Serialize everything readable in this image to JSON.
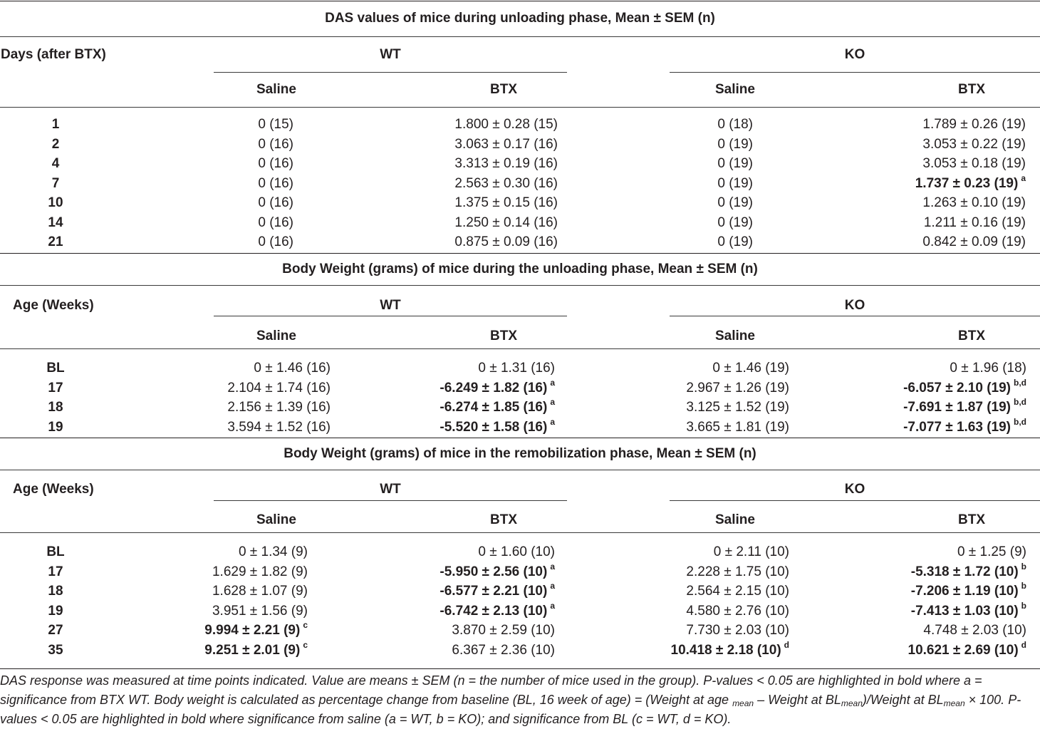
{
  "sections": [
    {
      "title": "DAS values of mice during unloading phase, Mean ± SEM (n)",
      "row_header": "Days (after BTX)",
      "group_wt": "WT",
      "group_ko": "KO",
      "col_saline_wt": "Saline",
      "col_btx_wt": "BTX",
      "col_saline_ko": "Saline",
      "col_btx_ko": "BTX",
      "rows": [
        {
          "label": "1",
          "cells": [
            {
              "text": "0 (15)"
            },
            {
              "text": "1.800 ± 0.28 (15)"
            },
            {
              "text": "0 (18)"
            },
            {
              "text": "1.789 ± 0.26 (19)"
            }
          ]
        },
        {
          "label": "2",
          "cells": [
            {
              "text": "0 (16)"
            },
            {
              "text": "3.063 ± 0.17 (16)"
            },
            {
              "text": "0 (19)"
            },
            {
              "text": "3.053 ± 0.22 (19)"
            }
          ]
        },
        {
          "label": "4",
          "cells": [
            {
              "text": "0 (16)"
            },
            {
              "text": "3.313 ± 0.19 (16)"
            },
            {
              "text": "0 (19)"
            },
            {
              "text": "3.053 ± 0.18 (19)"
            }
          ]
        },
        {
          "label": "7",
          "cells": [
            {
              "text": "0 (16)"
            },
            {
              "text": "2.563 ± 0.30 (16)"
            },
            {
              "text": "0 (19)"
            },
            {
              "text": "1.737 ± 0.23 (19)",
              "sup": "a",
              "bold": true
            }
          ]
        },
        {
          "label": "10",
          "cells": [
            {
              "text": "0 (16)"
            },
            {
              "text": "1.375 ± 0.15 (16)"
            },
            {
              "text": "0 (19)"
            },
            {
              "text": "1.263 ± 0.10 (19)"
            }
          ]
        },
        {
          "label": "14",
          "cells": [
            {
              "text": "0 (16)"
            },
            {
              "text": "1.250 ± 0.14 (16)"
            },
            {
              "text": "0 (19)"
            },
            {
              "text": "1.211 ± 0.16 (19)"
            }
          ]
        },
        {
          "label": "21",
          "cells": [
            {
              "text": "0 (16)"
            },
            {
              "text": "0.875 ± 0.09 (16)"
            },
            {
              "text": "0 (19)"
            },
            {
              "text": "0.842 ± 0.09 (19)"
            }
          ]
        }
      ]
    },
    {
      "title": "Body Weight (grams) of mice during the unloading phase, Mean ± SEM (n)",
      "row_header": "Age (Weeks)",
      "group_wt": "WT",
      "group_ko": "KO",
      "col_saline_wt": "Saline",
      "col_btx_wt": "BTX",
      "col_saline_ko": "Saline",
      "col_btx_ko": "BTX",
      "rows": [
        {
          "label": "BL",
          "cells": [
            {
              "text": "0 ± 1.46 (16)"
            },
            {
              "text": "0 ± 1.31 (16)"
            },
            {
              "text": "0 ± 1.46 (19)"
            },
            {
              "text": "0 ± 1.96 (18)"
            }
          ]
        },
        {
          "label": "17",
          "cells": [
            {
              "text": "2.104 ± 1.74 (16)"
            },
            {
              "text": "-6.249 ± 1.82 (16)",
              "sup": "a",
              "bold": true
            },
            {
              "text": "2.967 ± 1.26 (19)"
            },
            {
              "text": "-6.057 ± 2.10 (19)",
              "sup": "b,d",
              "bold": true
            }
          ]
        },
        {
          "label": "18",
          "cells": [
            {
              "text": "2.156 ± 1.39 (16)"
            },
            {
              "text": "-6.274 ± 1.85 (16)",
              "sup": "a",
              "bold": true
            },
            {
              "text": "3.125 ± 1.52 (19)"
            },
            {
              "text": "-7.691 ± 1.87 (19)",
              "sup": "b,d",
              "bold": true
            }
          ]
        },
        {
          "label": "19",
          "cells": [
            {
              "text": "3.594 ± 1.52 (16)"
            },
            {
              "text": "-5.520 ± 1.58 (16)",
              "sup": "a",
              "bold": true
            },
            {
              "text": "3.665 ± 1.81 (19)"
            },
            {
              "text": "-7.077 ± 1.63 (19)",
              "sup": "b,d",
              "bold": true
            }
          ]
        }
      ]
    },
    {
      "title": "Body Weight (grams) of mice in the remobilization phase, Mean ± SEM (n)",
      "row_header": "Age (Weeks)",
      "group_wt": "WT",
      "group_ko": "KO",
      "col_saline_wt": "Saline",
      "col_btx_wt": "BTX",
      "col_saline_ko": "Saline",
      "col_btx_ko": "BTX",
      "rows": [
        {
          "label": "BL",
          "cells": [
            {
              "text": "0 ± 1.34 (9)"
            },
            {
              "text": "0 ± 1.60 (10)"
            },
            {
              "text": "0 ± 2.11 (10)"
            },
            {
              "text": "0 ± 1.25 (9)"
            }
          ]
        },
        {
          "label": "17",
          "cells": [
            {
              "text": "1.629 ± 1.82 (9)"
            },
            {
              "text": "-5.950 ± 2.56 (10)",
              "sup": "a",
              "bold": true
            },
            {
              "text": "2.228 ± 1.75 (10)"
            },
            {
              "text": "-5.318 ± 1.72 (10)",
              "sup": "b",
              "bold": true
            }
          ]
        },
        {
          "label": "18",
          "cells": [
            {
              "text": "1.628 ± 1.07 (9)"
            },
            {
              "text": "-6.577 ± 2.21 (10)",
              "sup": "a",
              "bold": true
            },
            {
              "text": "2.564 ± 2.15 (10)"
            },
            {
              "text": "-7.206 ± 1.19 (10)",
              "sup": "b",
              "bold": true
            }
          ]
        },
        {
          "label": "19",
          "cells": [
            {
              "text": "3.951 ± 1.56 (9)"
            },
            {
              "text": "-6.742 ± 2.13 (10)",
              "sup": "a",
              "bold": true
            },
            {
              "text": "4.580 ± 2.76 (10)"
            },
            {
              "text": "-7.413 ± 1.03 (10)",
              "sup": "b",
              "bold": true
            }
          ]
        },
        {
          "label": "27",
          "cells": [
            {
              "text": "9.994 ± 2.21 (9)",
              "sup": "c",
              "bold": true
            },
            {
              "text": "3.870 ± 2.59 (10)"
            },
            {
              "text": "7.730 ± 2.03 (10)"
            },
            {
              "text": "4.748 ± 2.03 (10)"
            }
          ]
        },
        {
          "label": "35",
          "cells": [
            {
              "text": "9.251 ± 2.01 (9)",
              "sup": "c",
              "bold": true
            },
            {
              "text": "6.367 ± 2.36 (10)"
            },
            {
              "text": "10.418 ± 2.18 (10)",
              "sup": "d",
              "bold": true
            },
            {
              "text": "10.621 ± 2.69 (10)",
              "sup": "d",
              "bold": true
            }
          ]
        }
      ]
    }
  ],
  "footnote": {
    "p1": "DAS response was measured at time points indicated. Value are means ± SEM (n = the number of mice used in the group). P-values < 0.05 are highlighted in bold where a = significance from BTX WT. Body weight is calculated as percentage change from baseline (BL, 16 week of age) = (Weight at age ",
    "sub1": "mean",
    "p2": " – Weight at BL",
    "sub2": "mean",
    "p3": ")/Weight at BL",
    "sub3": "mean",
    "p4": " × 100. P-values < 0.05 are highlighted in bold where significance from saline (a = WT, b = KO); and significance from BL (c = WT, d = KO)."
  }
}
